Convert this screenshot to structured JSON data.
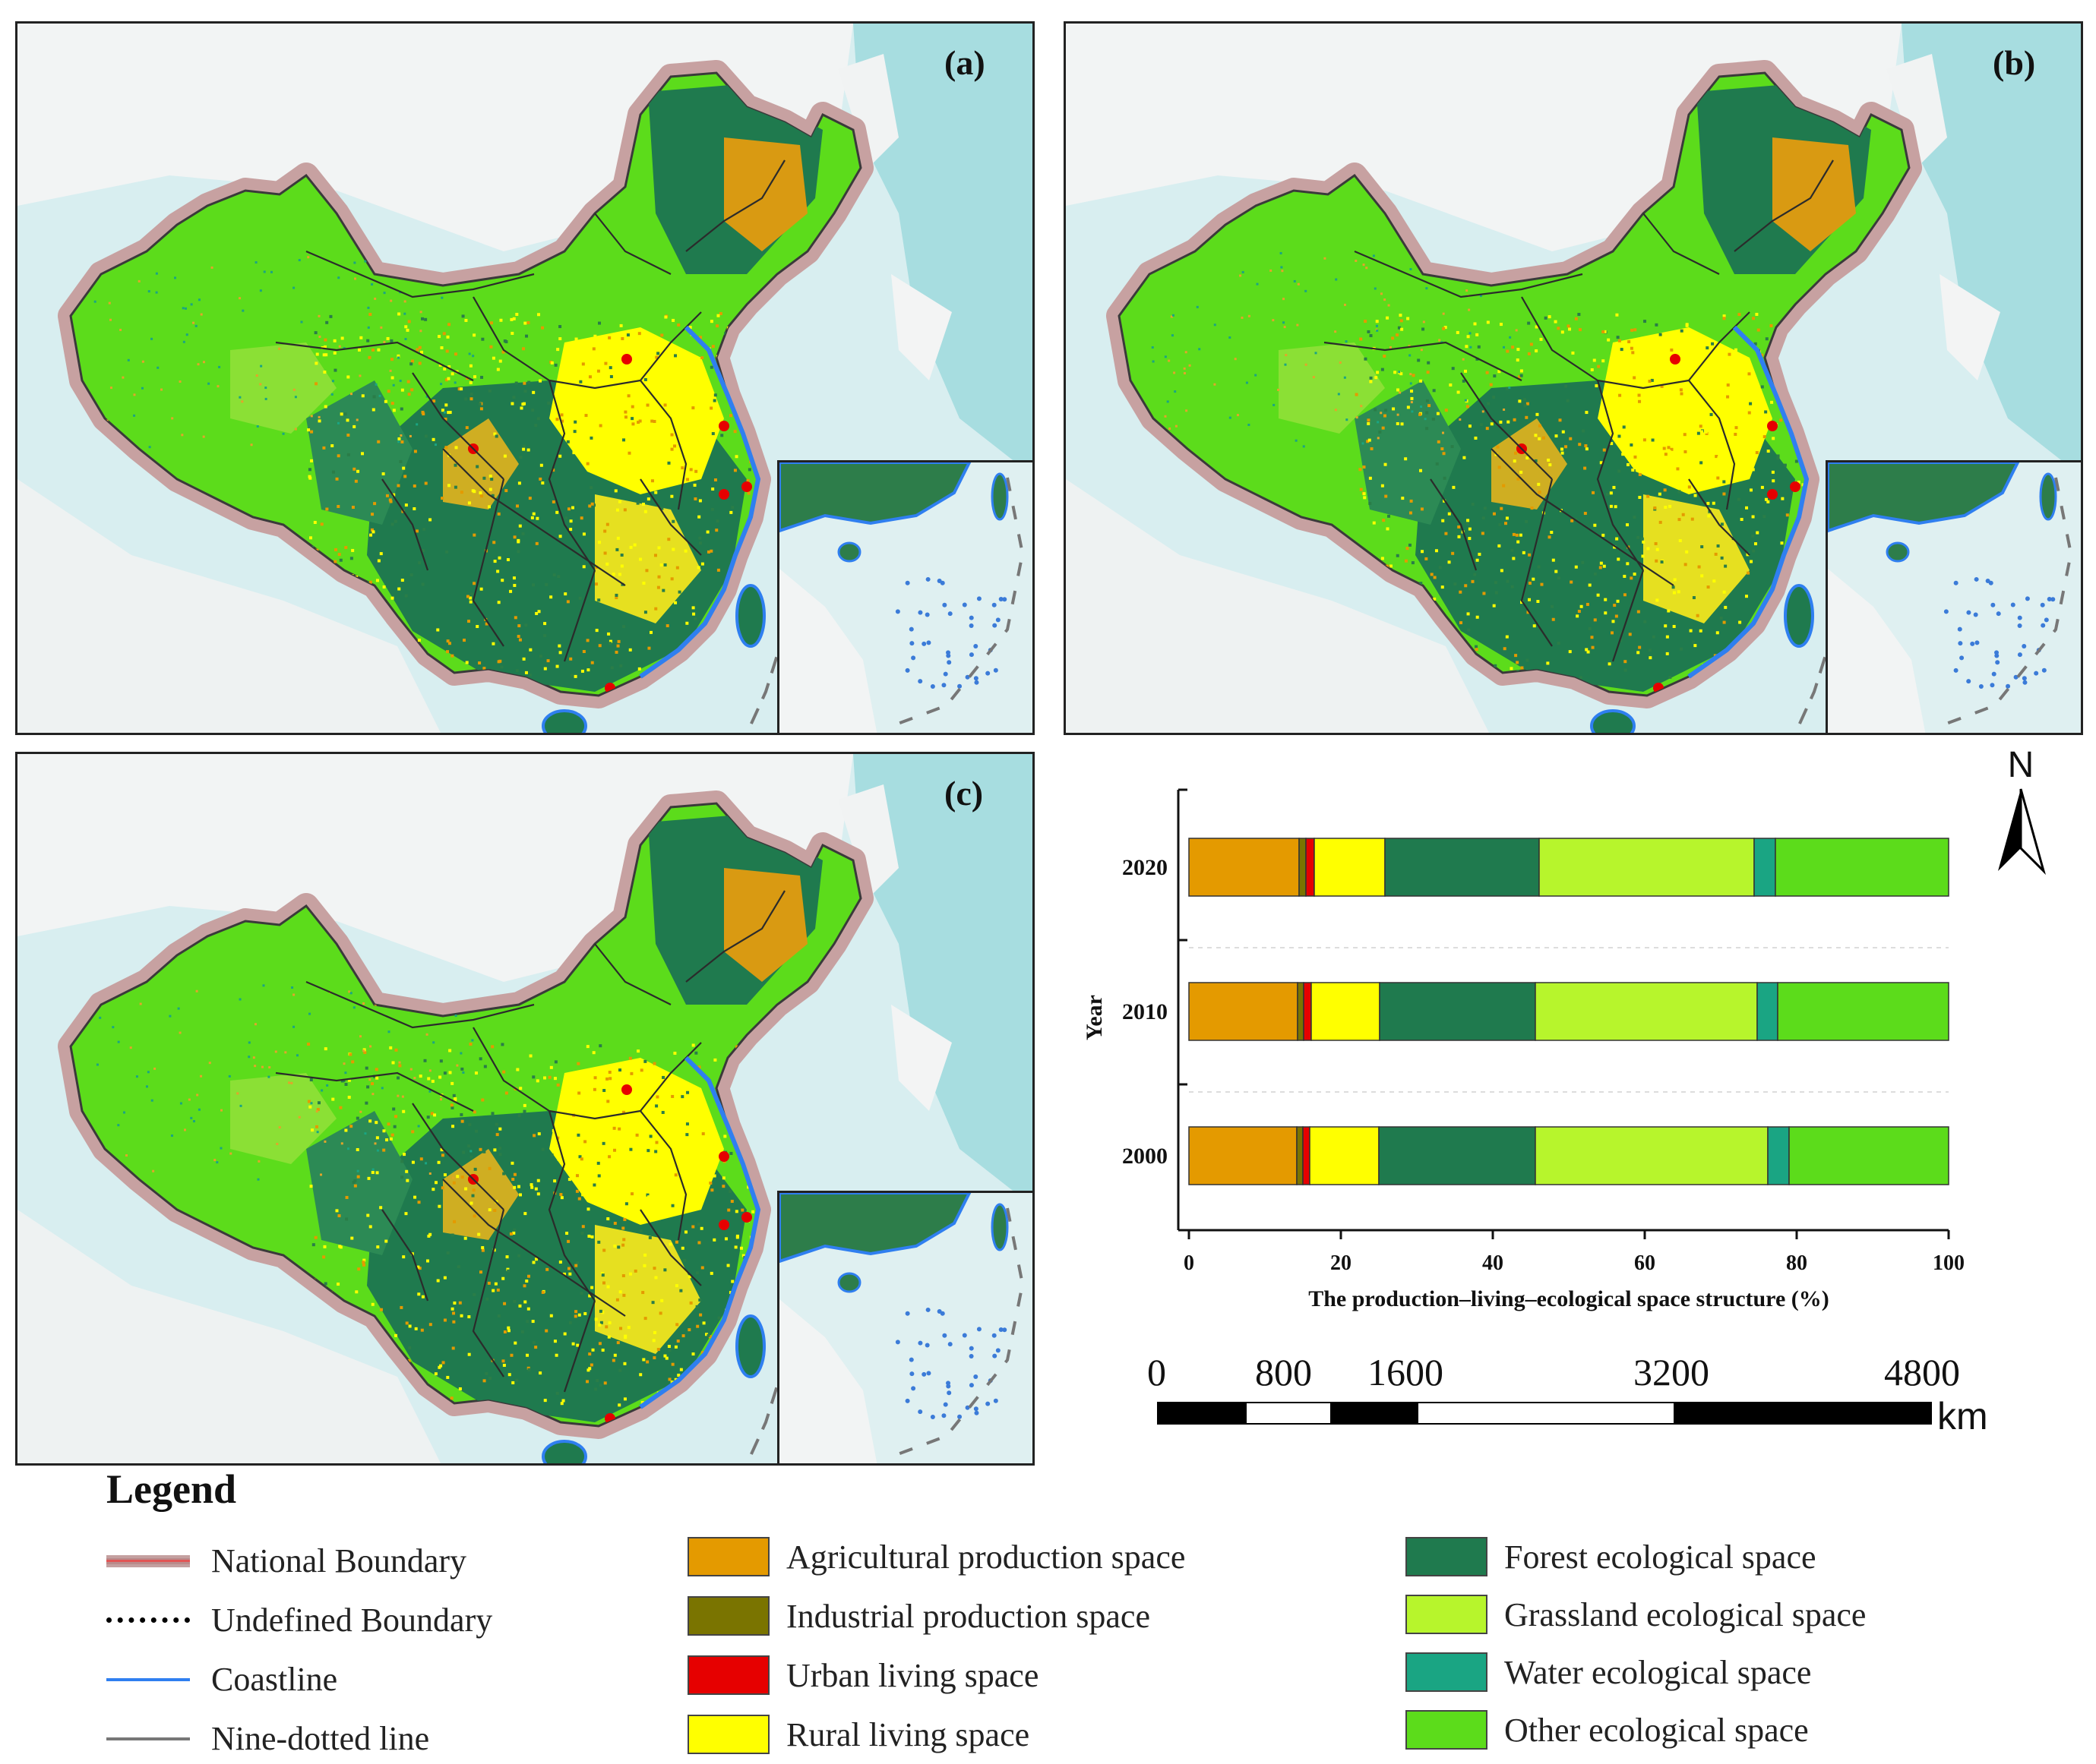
{
  "maps": [
    {
      "id": "a",
      "label": "(a)"
    },
    {
      "id": "b",
      "label": "(b)"
    },
    {
      "id": "c",
      "label": "(c)"
    }
  ],
  "chart_data": {
    "type": "bar",
    "orientation": "horizontal",
    "stacked": true,
    "categories": [
      "2020",
      "2010",
      "2000"
    ],
    "ylabel": "Year",
    "xlabel": "The production–living–ecological space structure (%)",
    "xlim": [
      0,
      100
    ],
    "xticks": [
      "0",
      "20",
      "40",
      "60",
      "80",
      "100"
    ],
    "series": [
      {
        "name": "Agricultural production space",
        "color": "#E49A00",
        "values": [
          14.5,
          14.3,
          14.2
        ]
      },
      {
        "name": "Industrial production space",
        "color": "#7A7400",
        "values": [
          0.9,
          0.8,
          0.8
        ]
      },
      {
        "name": "Urban living space",
        "color": "#E60000",
        "values": [
          1.1,
          1.0,
          0.9
        ]
      },
      {
        "name": "Rural living space",
        "color": "#FFFF00",
        "values": [
          9.3,
          9.0,
          9.1
        ]
      },
      {
        "name": "Forest ecological space",
        "color": "#1F7A4E",
        "values": [
          20.3,
          20.5,
          20.6
        ]
      },
      {
        "name": "Grassland ecological space",
        "color": "#B7F52C",
        "values": [
          28.3,
          29.2,
          30.6
        ]
      },
      {
        "name": "Water ecological space",
        "color": "#1AA583",
        "values": [
          2.8,
          2.7,
          2.8
        ]
      },
      {
        "name": "Other ecological space",
        "color": "#5CDC1B",
        "values": [
          22.8,
          22.5,
          21.0
        ]
      }
    ],
    "grid": false
  },
  "scale": {
    "ticks": [
      "0",
      "800",
      "1600",
      "3200",
      "4800"
    ],
    "unit": "km"
  },
  "north": {
    "label": "N"
  },
  "legend": {
    "title": "Legend",
    "lines": [
      {
        "label": "National Boundary",
        "name": "national-boundary"
      },
      {
        "label": "Undefined Boundary",
        "name": "undefined-boundary"
      },
      {
        "label": "Coastline",
        "name": "coastline"
      },
      {
        "label": "Nine-dotted line",
        "name": "nine-dotted-line"
      }
    ],
    "col2": [
      {
        "label": "Agricultural production space",
        "color": "#E49A00"
      },
      {
        "label": "Industrial production space",
        "color": "#7A7400"
      },
      {
        "label": "Urban living space",
        "color": "#E60000"
      },
      {
        "label": "Rural living space",
        "color": "#FFFF00"
      }
    ],
    "col3": [
      {
        "label": "Forest ecological space",
        "color": "#1F7A4E"
      },
      {
        "label": "Grassland ecological space",
        "color": "#B7F52C"
      },
      {
        "label": "Water ecological space",
        "color": "#1AA583"
      },
      {
        "label": "Other ecological space",
        "color": "#5CDC1B"
      }
    ]
  }
}
